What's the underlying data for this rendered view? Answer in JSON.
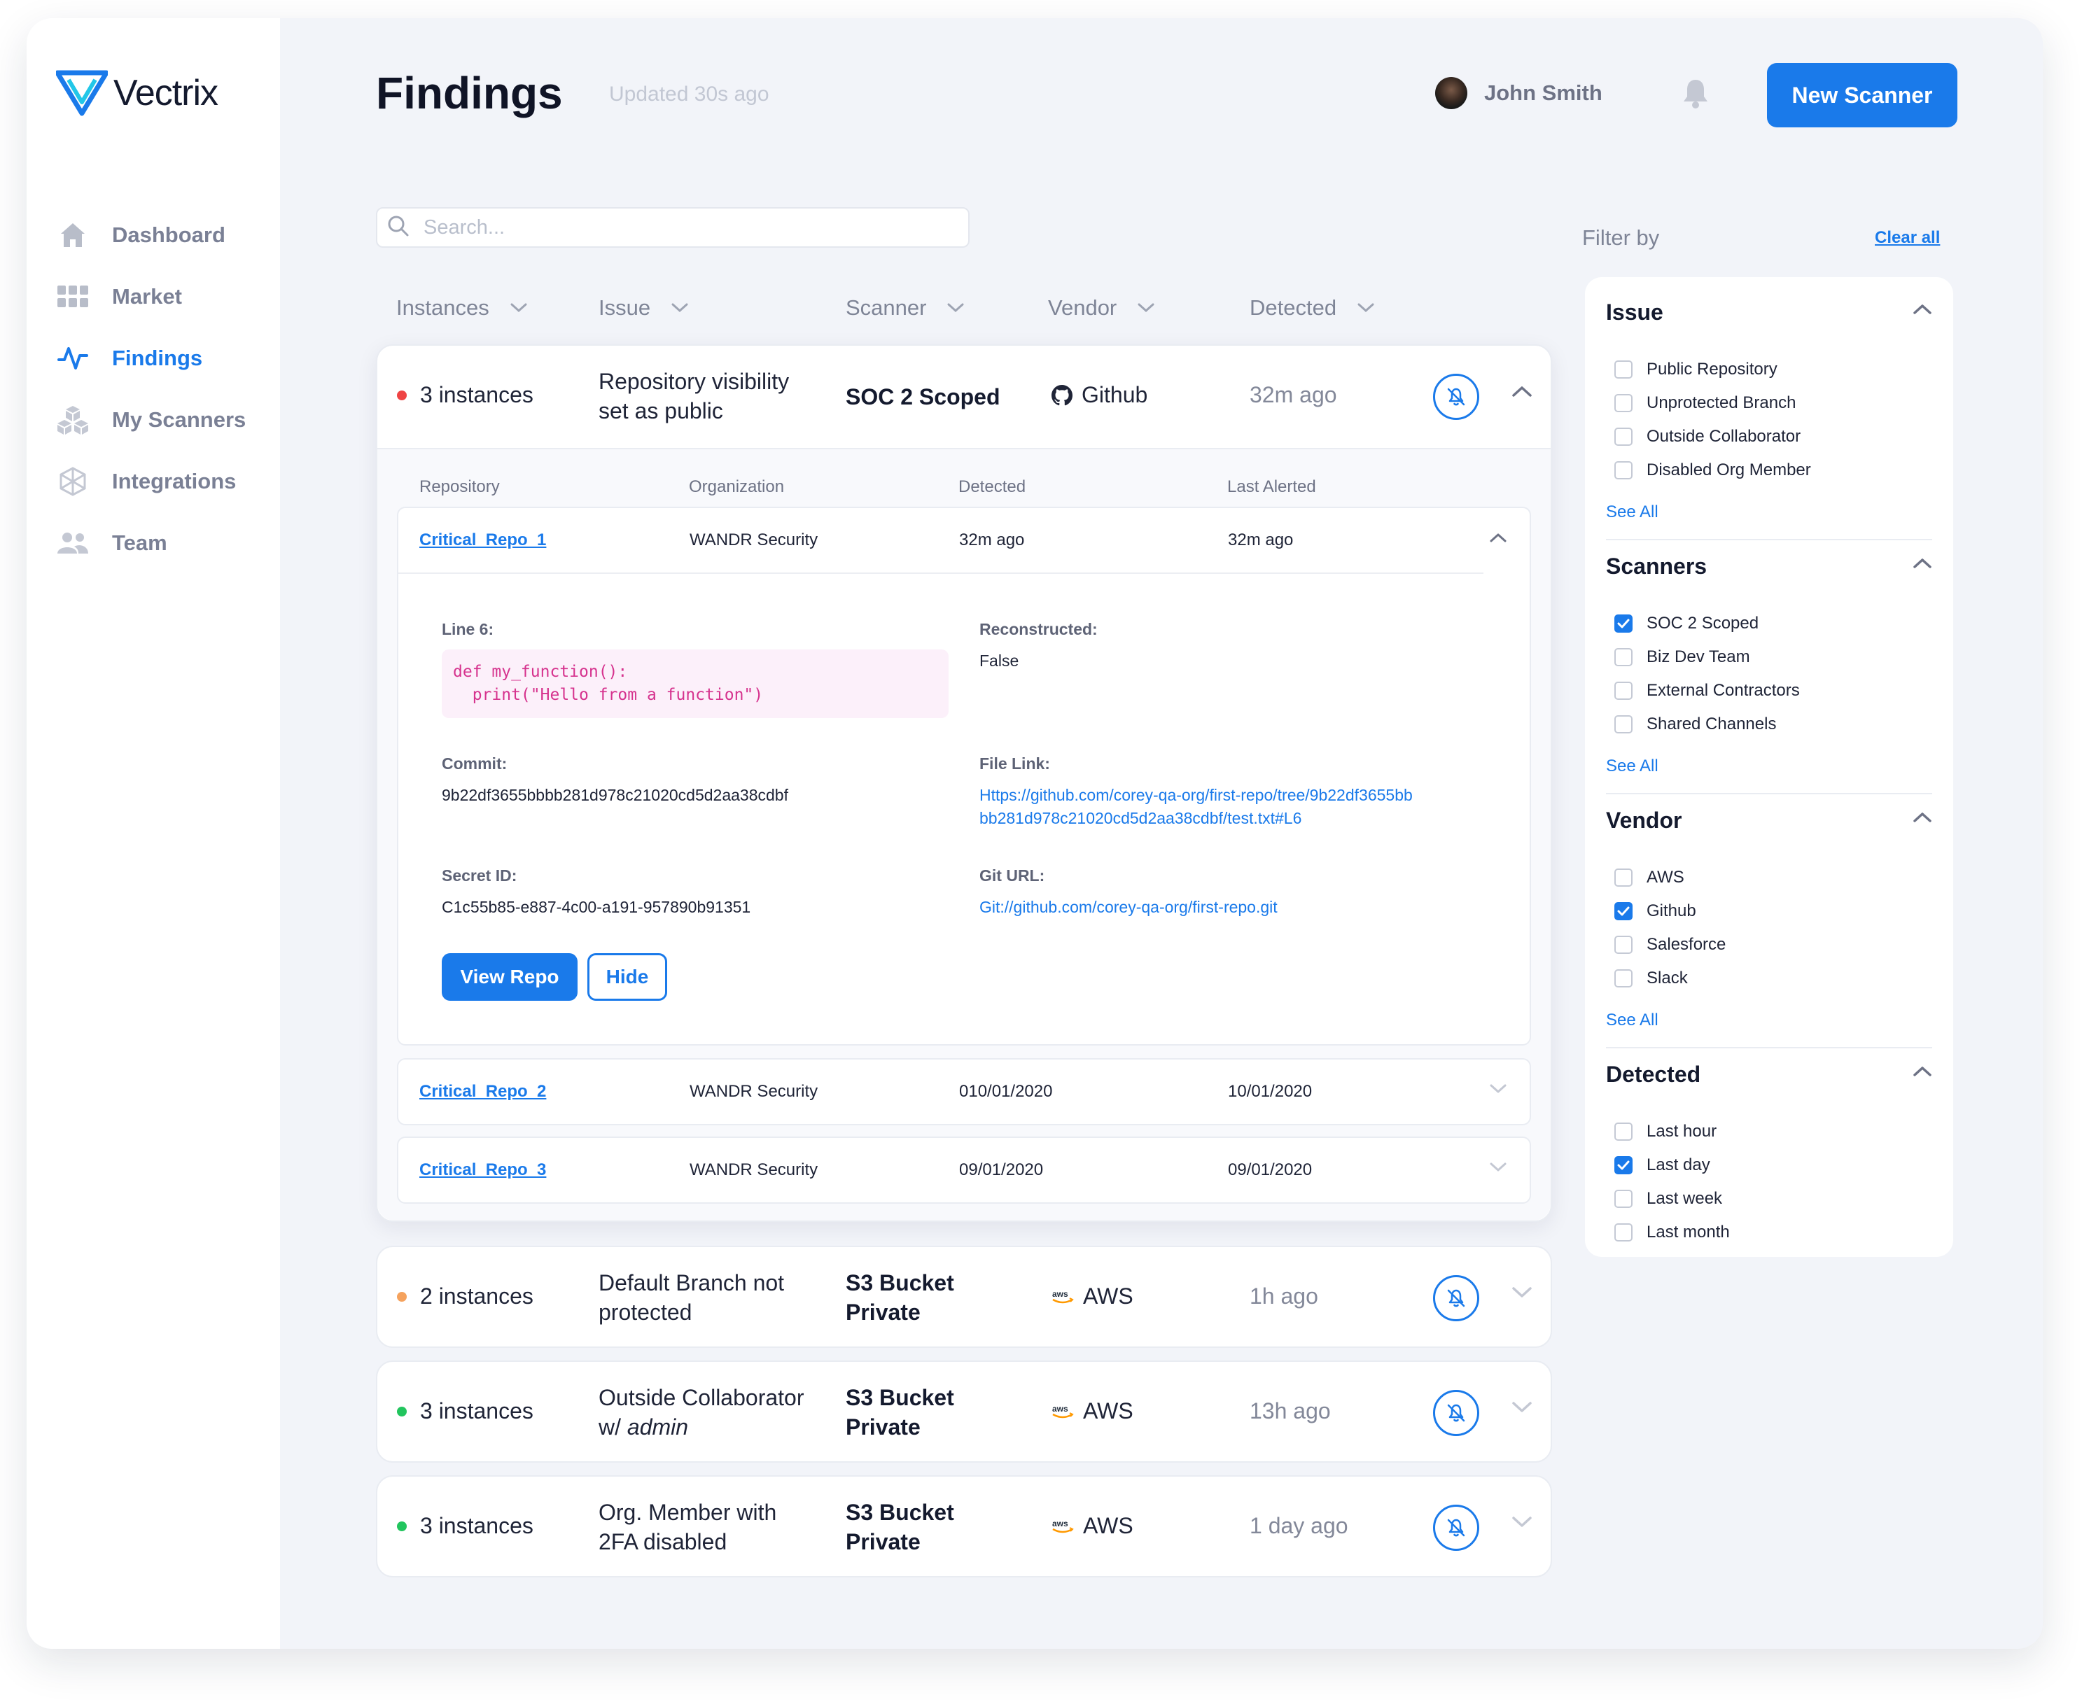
{
  "brand": {
    "name": "Vectrix"
  },
  "sidebar": {
    "items": [
      {
        "label": "Dashboard",
        "icon": "home-icon",
        "active": false
      },
      {
        "label": "Market",
        "icon": "grid-icon",
        "active": false
      },
      {
        "label": "Findings",
        "icon": "activity-icon",
        "active": true
      },
      {
        "label": "My Scanners",
        "icon": "cubes-icon",
        "active": false
      },
      {
        "label": "Integrations",
        "icon": "network-icon",
        "active": false
      },
      {
        "label": "Team",
        "icon": "users-icon",
        "active": false
      }
    ]
  },
  "header": {
    "title": "Findings",
    "updated": "Updated 30s ago",
    "user_name": "John Smith",
    "new_scanner_label": "New Scanner"
  },
  "search": {
    "placeholder": "Search..."
  },
  "columns": [
    "Instances",
    "Issue",
    "Scanner",
    "Vendor",
    "Detected"
  ],
  "findings": [
    {
      "instances": "3 instances",
      "status_color": "#ef4444",
      "issue_line1": "Repository visibility",
      "issue_line2": "set as public",
      "scanner": "SOC 2 Scoped",
      "vendor": "Github",
      "vendor_icon": "github-icon",
      "detected": "32m ago",
      "expanded": true,
      "sub_columns": [
        "Repository",
        "Organization",
        "Detected",
        "Last Alerted"
      ],
      "repos": [
        {
          "name": "Critical_Repo_1",
          "organization": "WANDR Security",
          "detected": "32m ago",
          "last_alerted": "32m ago",
          "expanded": true,
          "details": {
            "line_label": "Line 6:",
            "code": "def my_function():\n  print(\"Hello from a function\")",
            "reconstructed_label": "Reconstructed:",
            "reconstructed_value": "False",
            "commit_label": "Commit:",
            "commit_value": "9b22df3655bbbb281d978c21020cd5d2aa38cdbf",
            "file_link_label": "File Link:",
            "file_link_line1": "Https://github.com/corey-qa-org/first-repo/tree/9b22df3655bb",
            "file_link_line2": "bb281d978c21020cd5d2aa38cdbf/test.txt#L6",
            "secret_id_label": "Secret ID:",
            "secret_id_value": "C1c55b85-e887-4c00-a191-957890b91351",
            "git_url_label": "Git URL:",
            "git_url_value": "Git://github.com/corey-qa-org/first-repo.git",
            "view_repo_label": "View Repo",
            "hide_label": "Hide"
          }
        },
        {
          "name": "Critical_Repo_2",
          "organization": "WANDR Security",
          "detected": "010/01/2020",
          "last_alerted": "10/01/2020",
          "expanded": false
        },
        {
          "name": "Critical_Repo_3",
          "organization": "WANDR Security",
          "detected": "09/01/2020",
          "last_alerted": "09/01/2020",
          "expanded": false
        }
      ]
    },
    {
      "instances": "2 instances",
      "status_color": "#f5a25d",
      "issue_line1": "Default Branch not",
      "issue_line2": "protected",
      "scanner_line1": "S3 Bucket",
      "scanner_line2": "Private",
      "vendor": "AWS",
      "vendor_icon": "aws-icon",
      "detected": "1h ago",
      "expanded": false
    },
    {
      "instances": "3 instances",
      "status_color": "#22c55e",
      "issue_line1": "Outside Collaborator",
      "issue_line2_prefix": "w/ ",
      "issue_line2_em": "admin",
      "scanner_line1": "S3 Bucket",
      "scanner_line2": "Private",
      "vendor": "AWS",
      "vendor_icon": "aws-icon",
      "detected": "13h ago",
      "expanded": false
    },
    {
      "instances": "3 instances",
      "status_color": "#22c55e",
      "issue_line1": "Org. Member with",
      "issue_line2": "2FA disabled",
      "scanner_line1": "S3 Bucket",
      "scanner_line2": "Private",
      "vendor": "AWS",
      "vendor_icon": "aws-icon",
      "detected": "1 day ago",
      "expanded": false
    }
  ],
  "filters": {
    "title": "Filter by",
    "clear_all": "Clear all",
    "see_all": "See All",
    "groups": [
      {
        "title": "Issue",
        "options": [
          {
            "label": "Public Repository",
            "checked": false
          },
          {
            "label": "Unprotected Branch",
            "checked": false
          },
          {
            "label": "Outside Collaborator",
            "checked": false
          },
          {
            "label": "Disabled Org Member",
            "checked": false
          }
        ]
      },
      {
        "title": "Scanners",
        "options": [
          {
            "label": "SOC 2 Scoped",
            "checked": true
          },
          {
            "label": "Biz Dev Team",
            "checked": false
          },
          {
            "label": "External Contractors",
            "checked": false
          },
          {
            "label": "Shared Channels",
            "checked": false
          }
        ]
      },
      {
        "title": "Vendor",
        "options": [
          {
            "label": "AWS",
            "checked": false
          },
          {
            "label": "Github",
            "checked": true
          },
          {
            "label": "Salesforce",
            "checked": false
          },
          {
            "label": "Slack",
            "checked": false
          }
        ]
      },
      {
        "title": "Detected",
        "options": [
          {
            "label": "Last hour",
            "checked": false
          },
          {
            "label": "Last day",
            "checked": true
          },
          {
            "label": "Last week",
            "checked": false
          },
          {
            "label": "Last month",
            "checked": false
          }
        ]
      }
    ]
  },
  "colors": {
    "accent": "#1a7aea",
    "background": "#f2f4f9"
  }
}
